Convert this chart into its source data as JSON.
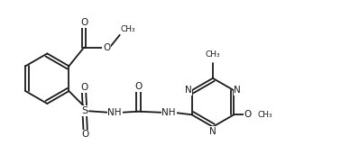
{
  "bg": "#ffffff",
  "lc": "#1a1a1a",
  "lw": 1.3,
  "fs": 7.0,
  "figsize": [
    3.88,
    1.72
  ],
  "dpi": 100,
  "xlim": [
    0.0,
    9.7
  ],
  "ylim": [
    0.3,
    4.6
  ]
}
